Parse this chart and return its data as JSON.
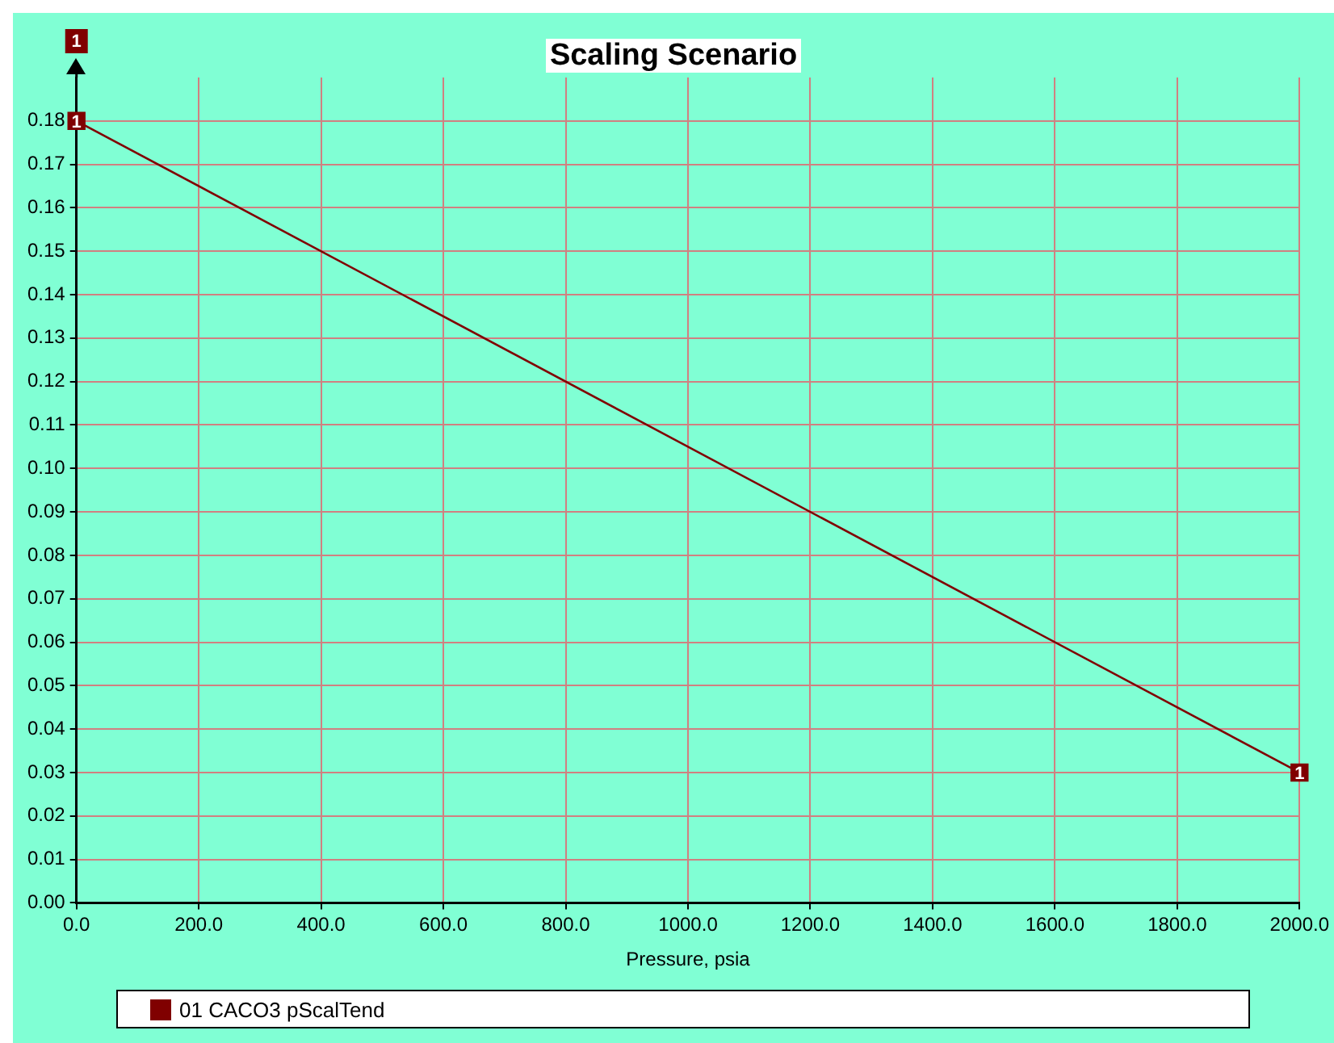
{
  "chart_data": {
    "type": "line",
    "title": "Scaling Scenario",
    "xlabel": "Pressure, psia",
    "ylabel": "1",
    "series": [
      {
        "name": "01 CACO3 pScalTend",
        "color": "#800000",
        "x": [
          0,
          2000
        ],
        "values": [
          0.18,
          0.03
        ]
      }
    ],
    "annotations": [
      {
        "text": "1",
        "x": 0,
        "y": 0.18
      },
      {
        "text": "1",
        "x": 2000,
        "y": 0.03
      }
    ],
    "xlim": [
      0,
      2000
    ],
    "xticks": [
      {
        "value": 0,
        "label": "0.0"
      },
      {
        "value": 200,
        "label": "200.0"
      },
      {
        "value": 400,
        "label": "400.0"
      },
      {
        "value": 600,
        "label": "600.0"
      },
      {
        "value": 800,
        "label": "800.0"
      },
      {
        "value": 1000,
        "label": "1000.0"
      },
      {
        "value": 1200,
        "label": "1200.0"
      },
      {
        "value": 1400,
        "label": "1400.0"
      },
      {
        "value": 1600,
        "label": "1600.0"
      },
      {
        "value": 1800,
        "label": "1800.0"
      },
      {
        "value": 2000,
        "label": "2000.0"
      }
    ],
    "ylim": [
      0,
      0.19
    ],
    "yticks": [
      {
        "value": 0,
        "label": "0.00"
      },
      {
        "value": 0.01,
        "label": "0.01"
      },
      {
        "value": 0.02,
        "label": "0.02"
      },
      {
        "value": 0.03,
        "label": "0.03"
      },
      {
        "value": 0.04,
        "label": "0.04"
      },
      {
        "value": 0.05,
        "label": "0.05"
      },
      {
        "value": 0.06,
        "label": "0.06"
      },
      {
        "value": 0.07,
        "label": "0.07"
      },
      {
        "value": 0.08,
        "label": "0.08"
      },
      {
        "value": 0.09,
        "label": "0.09"
      },
      {
        "value": 0.1,
        "label": "0.10"
      },
      {
        "value": 0.11,
        "label": "0.11"
      },
      {
        "value": 0.12,
        "label": "0.12"
      },
      {
        "value": 0.13,
        "label": "0.13"
      },
      {
        "value": 0.14,
        "label": "0.14"
      },
      {
        "value": 0.15,
        "label": "0.15"
      },
      {
        "value": 0.16,
        "label": "0.16"
      },
      {
        "value": 0.17,
        "label": "0.17"
      },
      {
        "value": 0.18,
        "label": "0.18"
      }
    ],
    "grid": true,
    "legend": "bottom",
    "marker": "square",
    "line_style": "solid"
  }
}
